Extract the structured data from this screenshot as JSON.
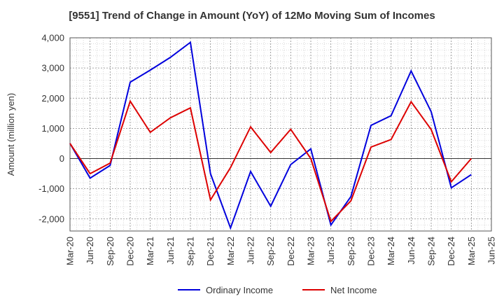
{
  "chart_data": {
    "type": "line",
    "title": "[9551]  Trend of Change in Amount (YoY) of 12Mo Moving Sum of Incomes",
    "xlabel": "",
    "ylabel": "Amount (million yen)",
    "ylim": [
      -2400,
      4000
    ],
    "yticks": [
      4000,
      3000,
      2000,
      1000,
      0,
      -1000,
      -2000
    ],
    "ytick_labels": [
      "4,000",
      "3,000",
      "2,000",
      "1,000",
      "0",
      "-1,000",
      "-2,000"
    ],
    "categories": [
      "Mar-20",
      "Jun-20",
      "Sep-20",
      "Dec-20",
      "Mar-21",
      "Jun-21",
      "Sep-21",
      "Dec-21",
      "Mar-22",
      "Jun-22",
      "Sep-22",
      "Dec-22",
      "Mar-23",
      "Jun-23",
      "Sep-23",
      "Dec-23",
      "Mar-24",
      "Jun-24",
      "Sep-24",
      "Dec-24",
      "Mar-25",
      "Jun-25"
    ],
    "grid": true,
    "legend_position": "bottom",
    "series": [
      {
        "name": "Ordinary Income",
        "color": "#0000dd",
        "values": [
          500,
          -650,
          -230,
          2530,
          2930,
          3350,
          3850,
          -500,
          -2300,
          -430,
          -1580,
          -200,
          320,
          -2200,
          -1260,
          1100,
          1420,
          2900,
          1550,
          -970,
          -530,
          null
        ]
      },
      {
        "name": "Net Income",
        "color": "#dd0000",
        "values": [
          500,
          -500,
          -150,
          1900,
          870,
          1350,
          1680,
          -1370,
          -300,
          1050,
          200,
          970,
          0,
          -2080,
          -1400,
          380,
          630,
          1880,
          960,
          -770,
          0,
          null
        ]
      }
    ]
  }
}
